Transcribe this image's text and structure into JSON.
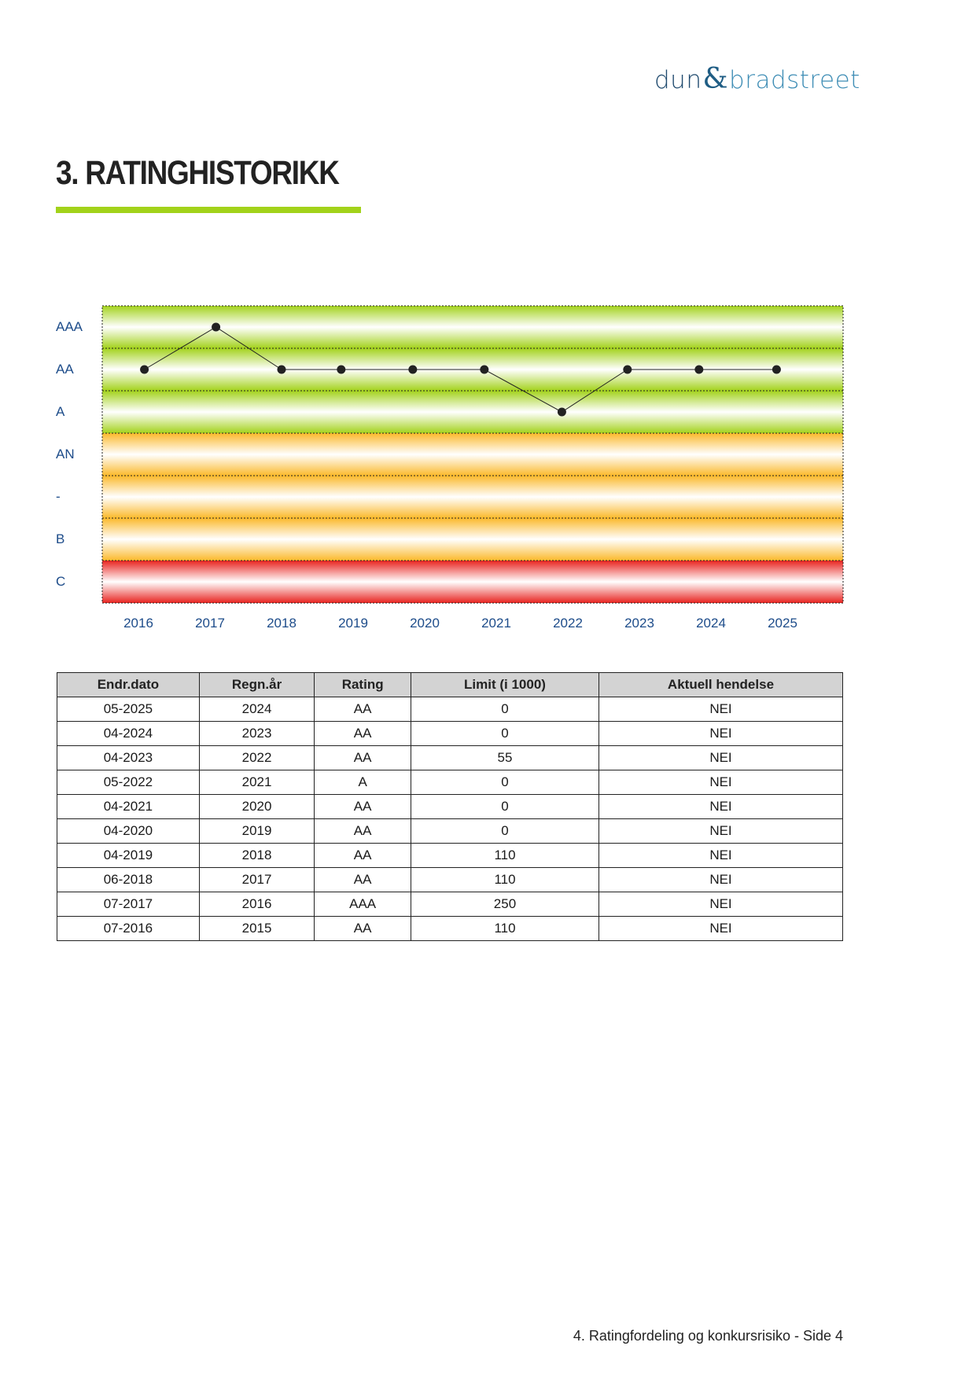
{
  "logo": {
    "part1": "dun",
    "amp": "&",
    "part2": "bradstreet"
  },
  "title": "3. RATINGHISTORIKK",
  "chart_data": {
    "type": "line",
    "y_categories": [
      "AAA",
      "AA",
      "A",
      "AN",
      "-",
      "B",
      "C"
    ],
    "band_colors": {
      "AAA": "#a3d21c",
      "AA": "#a3d21c",
      "A": "#a3d21c",
      "AN": "#fbb92b",
      "-": "#fbb92b",
      "B": "#fbb92b",
      "C": "#e8231f"
    },
    "x_ticks": [
      "2016",
      "2017",
      "2018",
      "2019",
      "2020",
      "2021",
      "2022",
      "2023",
      "2024",
      "2025"
    ],
    "points": [
      {
        "date": "2016-07",
        "rating": "AA"
      },
      {
        "date": "2017-07",
        "rating": "AAA"
      },
      {
        "date": "2018-06",
        "rating": "AA"
      },
      {
        "date": "2019-04",
        "rating": "AA"
      },
      {
        "date": "2020-04",
        "rating": "AA"
      },
      {
        "date": "2021-04",
        "rating": "AA"
      },
      {
        "date": "2022-05",
        "rating": "A"
      },
      {
        "date": "2023-04",
        "rating": "AA"
      },
      {
        "date": "2024-04",
        "rating": "AA"
      },
      {
        "date": "2025-05",
        "rating": "AA"
      }
    ],
    "grid": true,
    "line_color": "#222222"
  },
  "table": {
    "headers": [
      "Endr.dato",
      "Regn.år",
      "Rating",
      "Limit (i 1000)",
      "Aktuell hendelse"
    ],
    "rows": [
      [
        "05-2025",
        "2024",
        "AA",
        "0",
        "NEI"
      ],
      [
        "04-2024",
        "2023",
        "AA",
        "0",
        "NEI"
      ],
      [
        "04-2023",
        "2022",
        "AA",
        "55",
        "NEI"
      ],
      [
        "05-2022",
        "2021",
        "A",
        "0",
        "NEI"
      ],
      [
        "04-2021",
        "2020",
        "AA",
        "0",
        "NEI"
      ],
      [
        "04-2020",
        "2019",
        "AA",
        "0",
        "NEI"
      ],
      [
        "04-2019",
        "2018",
        "AA",
        "110",
        "NEI"
      ],
      [
        "06-2018",
        "2017",
        "AA",
        "110",
        "NEI"
      ],
      [
        "07-2017",
        "2016",
        "AAA",
        "250",
        "NEI"
      ],
      [
        "07-2016",
        "2015",
        "AA",
        "110",
        "NEI"
      ]
    ]
  },
  "footer": "4. Ratingfordeling og konkursrisiko - Side 4"
}
